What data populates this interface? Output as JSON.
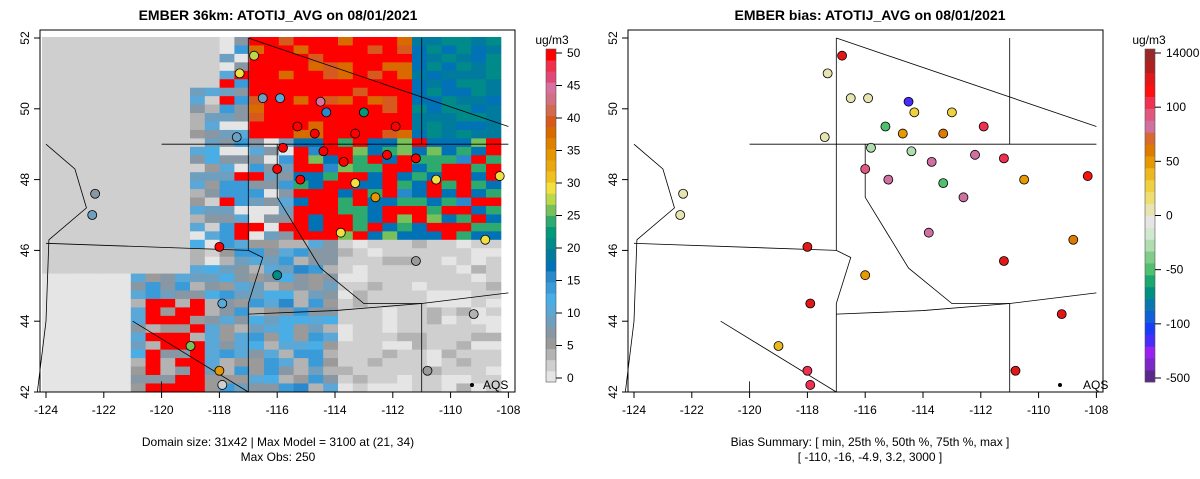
{
  "left": {
    "title": "EMBER 36km: ATOTIJ_AVG on 08/01/2021",
    "footer_line1": "Domain size: 31x42 | Max Model = 3100 at (21, 34)",
    "footer_line2": "Max Obs: 250",
    "legend_unit": "ug/m3",
    "legend_ticks": [
      "0",
      "5",
      "10",
      "15",
      "20",
      "25",
      "30",
      "35",
      "40",
      "45",
      "50"
    ],
    "legend_colors": [
      "#e5e5e5",
      "#cfcfcf",
      "#b3b3b3",
      "#9a9a9a",
      "#8797a3",
      "#6f9fbf",
      "#5aa8d8",
      "#4aaee6",
      "#3b9bd9",
      "#2a88cc",
      "#0072b5",
      "#007b9e",
      "#008a8a",
      "#00997a",
      "#2eaa6e",
      "#78c05a",
      "#bcd84a",
      "#f0e040",
      "#efc020",
      "#eaa810",
      "#e69600",
      "#e08000",
      "#d86a00",
      "#d65a1e",
      "#d26a50",
      "#d07080",
      "#d870a0",
      "#e04878",
      "#f03048",
      "#ff0000"
    ],
    "aqs_label": "AQS"
  },
  "right": {
    "title": "EMBER bias: ATOTIJ_AVG on 08/01/2021",
    "footer_line1": "Bias Summary: [ min, 25th %, 50th %, 75th %, max ]",
    "footer_line2": "[ -110,   -16,   -4.9,   3.2,   3000 ]",
    "legend_unit": "ug/m3",
    "legend_ticks": [
      "-500",
      "-100",
      "-50",
      "0",
      "50",
      "100",
      "14000"
    ],
    "legend_colors": [
      "#5a2a8a",
      "#7a28c8",
      "#9a22f0",
      "#4a2cf8",
      "#1a3cf8",
      "#1060d8",
      "#0a78b0",
      "#009080",
      "#1aa870",
      "#50c070",
      "#80cc88",
      "#b0dcb0",
      "#d0e8d0",
      "#e5e5e5",
      "#e8e4b0",
      "#ecdf70",
      "#eed040",
      "#ecb820",
      "#e69a00",
      "#de7a00",
      "#d86a30",
      "#d070a0",
      "#e05880",
      "#f03050",
      "#ff1010",
      "#e01818",
      "#b02020",
      "#9a2828"
    ],
    "aqs_label": "AQS"
  },
  "axes": {
    "x_ticks": [
      "-124",
      "-122",
      "-120",
      "-118",
      "-116",
      "-114",
      "-112",
      "-110",
      "-108"
    ],
    "y_ticks": [
      "42",
      "44",
      "46",
      "48",
      "50",
      "52"
    ]
  },
  "stations": [
    {
      "lon": -116.8,
      "lat": 51.5,
      "obs": 28,
      "bias": -5
    },
    {
      "lon": -117.3,
      "lat": 51.0,
      "obs": 30,
      "bias": 10
    },
    {
      "lon": -116.5,
      "lat": 50.3,
      "obs": 8,
      "bias": 8
    },
    {
      "lon": -115.9,
      "lat": 50.3,
      "obs": 10,
      "bias": 2
    },
    {
      "lon": -114.5,
      "lat": 50.2,
      "obs": 45,
      "bias": -110
    },
    {
      "lon": -114.3,
      "lat": 49.9,
      "obs": 15,
      "bias": -35
    },
    {
      "lon": -113.0,
      "lat": 49.9,
      "obs": 22,
      "bias": -35
    },
    {
      "lon": -111.9,
      "lat": 49.5,
      "obs": 50,
      "bias": 110
    },
    {
      "lon": -115.3,
      "lat": 49.5,
      "obs": 50,
      "bias": -80
    },
    {
      "lon": -114.7,
      "lat": 49.3,
      "obs": 50,
      "bias": -30
    },
    {
      "lon": -113.3,
      "lat": 49.3,
      "obs": 50,
      "bias": -25
    },
    {
      "lon": -115.8,
      "lat": 48.9,
      "obs": 50,
      "bias": -60
    },
    {
      "lon": -114.4,
      "lat": 48.8,
      "obs": 50,
      "bias": -60
    },
    {
      "lon": -113.7,
      "lat": 48.5,
      "obs": 50,
      "bias": -20
    },
    {
      "lon": -112.2,
      "lat": 48.7,
      "obs": 50,
      "bias": -20
    },
    {
      "lon": -111.2,
      "lat": 48.6,
      "obs": 50,
      "bias": 300
    },
    {
      "lon": -116.0,
      "lat": 48.3,
      "obs": 50,
      "bias": -15
    },
    {
      "lon": -115.2,
      "lat": 48.0,
      "obs": 50,
      "bias": -20
    },
    {
      "lon": -113.3,
      "lat": 47.9,
      "obs": 30,
      "bias": -80
    },
    {
      "lon": -112.6,
      "lat": 47.5,
      "obs": 35,
      "bias": -20
    },
    {
      "lon": -110.5,
      "lat": 48.0,
      "obs": 30,
      "bias": 45
    },
    {
      "lon": -117.4,
      "lat": 49.2,
      "obs": 8,
      "bias": 6
    },
    {
      "lon": -122.3,
      "lat": 47.6,
      "obs": 7,
      "bias": 4
    },
    {
      "lon": -122.4,
      "lat": 47.0,
      "obs": 8,
      "bias": 3
    },
    {
      "lon": -118.0,
      "lat": 46.1,
      "obs": 50,
      "bias": -5
    },
    {
      "lon": -116.0,
      "lat": 45.3,
      "obs": 20,
      "bias": -30
    },
    {
      "lon": -113.8,
      "lat": 46.5,
      "obs": 30,
      "bias": -20
    },
    {
      "lon": -117.9,
      "lat": 44.5,
      "obs": 10,
      "bias": -2
    },
    {
      "lon": -119.0,
      "lat": 43.3,
      "obs": 25,
      "bias": 40
    },
    {
      "lon": -118.0,
      "lat": 42.6,
      "obs": 35,
      "bias": 150
    },
    {
      "lon": -117.9,
      "lat": 42.2,
      "obs": 2,
      "bias": 150
    },
    {
      "lon": -110.8,
      "lat": 42.6,
      "obs": 5,
      "bias": -3
    },
    {
      "lon": -108.3,
      "lat": 48.1,
      "obs": 30,
      "bias": -6
    },
    {
      "lon": -108.8,
      "lat": 46.3,
      "obs": 30,
      "bias": -25
    },
    {
      "lon": -109.2,
      "lat": 44.2,
      "obs": 3,
      "bias": -2
    },
    {
      "lon": -111.2,
      "lat": 45.7,
      "obs": 5,
      "bias": -5
    }
  ]
}
